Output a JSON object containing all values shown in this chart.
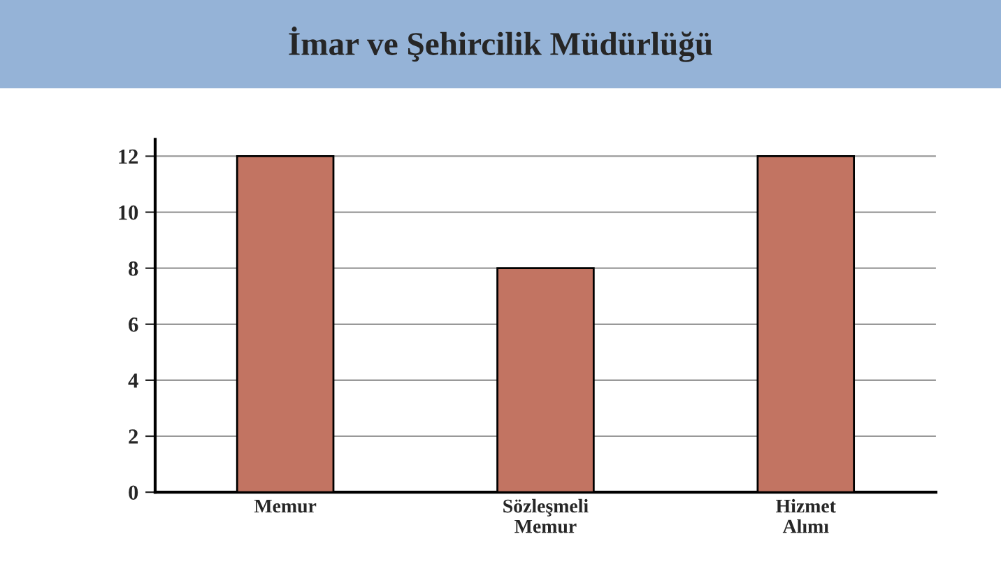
{
  "chart_data": {
    "type": "bar",
    "title": "İmar ve Şehircilik Müdürlüğü",
    "categories": [
      "Memur",
      "Sözleşmeli\nMemur",
      "Hizmet\nAlımı"
    ],
    "values": [
      12,
      8,
      12
    ],
    "color": "#c27462",
    "ylim": [
      0,
      12.6
    ],
    "yticks": [
      0,
      2,
      4,
      6,
      8,
      10,
      12
    ],
    "grid": "y"
  }
}
